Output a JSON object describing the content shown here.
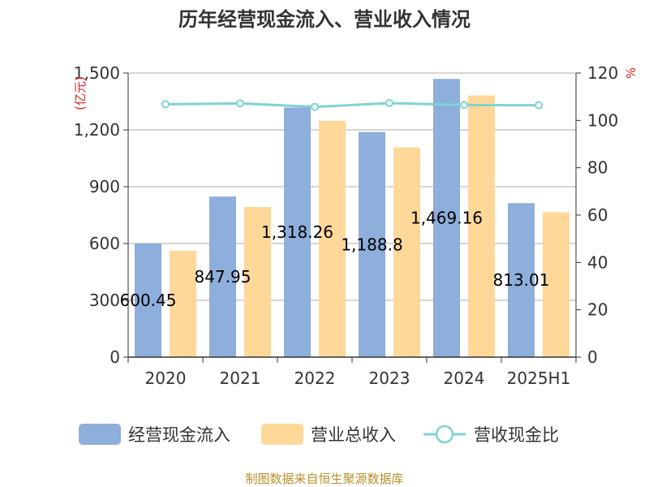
{
  "chart_data": {
    "type": "bar",
    "title": "历年经营现金流入、营业收入情况",
    "categories": [
      "2020",
      "2021",
      "2022",
      "2023",
      "2024",
      "2025H1"
    ],
    "series": [
      {
        "name": "经营现金流入",
        "type": "bar",
        "axis": "left",
        "color": "#8eaedb",
        "values": [
          600.45,
          847.95,
          1318.26,
          1188.8,
          1469.16,
          813.01
        ],
        "labels": [
          "600.45",
          "847.95",
          "1,318.26",
          "1,188.8",
          "1,469.16",
          "813.01"
        ]
      },
      {
        "name": "营业总收入",
        "type": "bar",
        "axis": "left",
        "color": "#fed898",
        "values": [
          562,
          793,
          1248,
          1108,
          1382,
          765
        ]
      },
      {
        "name": "营收现金比",
        "type": "line",
        "axis": "right",
        "color": "#7fd3d2",
        "values": [
          106.8,
          107.2,
          105.7,
          107.3,
          106.5,
          106.4
        ]
      }
    ],
    "yleft": {
      "unit": "(亿元)",
      "ylim": [
        0,
        1500
      ],
      "ticks": [
        0,
        300,
        600,
        900,
        1200,
        1500
      ],
      "tick_labels": [
        "0",
        "300",
        "600",
        "900",
        "1,200",
        "1,500"
      ]
    },
    "yright": {
      "unit": "%",
      "ylim": [
        0,
        120
      ],
      "ticks": [
        0,
        20,
        40,
        60,
        80,
        100,
        120
      ],
      "tick_labels": [
        "0",
        "20",
        "40",
        "60",
        "80",
        "100",
        "120"
      ]
    },
    "grid": true,
    "legend": "bottom",
    "source": "制图数据来自恒生聚源数据库"
  }
}
